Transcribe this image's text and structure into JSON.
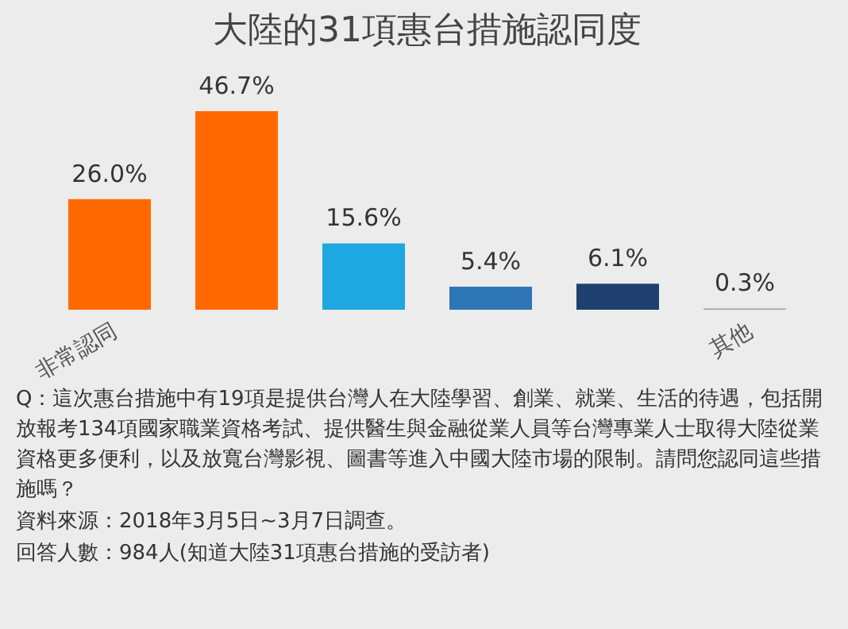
{
  "chart_data": {
    "type": "bar",
    "title": "大陸的31項惠台措施認同度",
    "categories": [
      "非常認同",
      null,
      null,
      null,
      null,
      "其他"
    ],
    "values": [
      26.0,
      46.7,
      15.6,
      5.4,
      6.1,
      0.3
    ],
    "colors": [
      "#ff6a00",
      "#ff6a00",
      "#1ea7e1",
      "#2e75b6",
      "#1f3f6e",
      "#9e9e9e"
    ],
    "value_labels": [
      "26.0%",
      "46.7%",
      "15.6%",
      "5.4%",
      "6.1%",
      "0.3%"
    ],
    "tick_labels": "x",
    "annotations": [
      "Q：這次惠台措施中有19項是提供台灣人在大陸學習、創業、就業、生活的待遇，包括開放報考134項國家職業資格考試、提供醫生與金融從業人員等台灣專業人士取得大陸從業資格更多便利，以及放寬台灣影視、圖書等進入中國大陸市場的限制。請問您認同這些措施嗎？",
      "資料來源：2018年3月5日~3月7日調查。",
      "回答人數：984人(知道大陸31項惠台措施的受訪者)"
    ]
  }
}
